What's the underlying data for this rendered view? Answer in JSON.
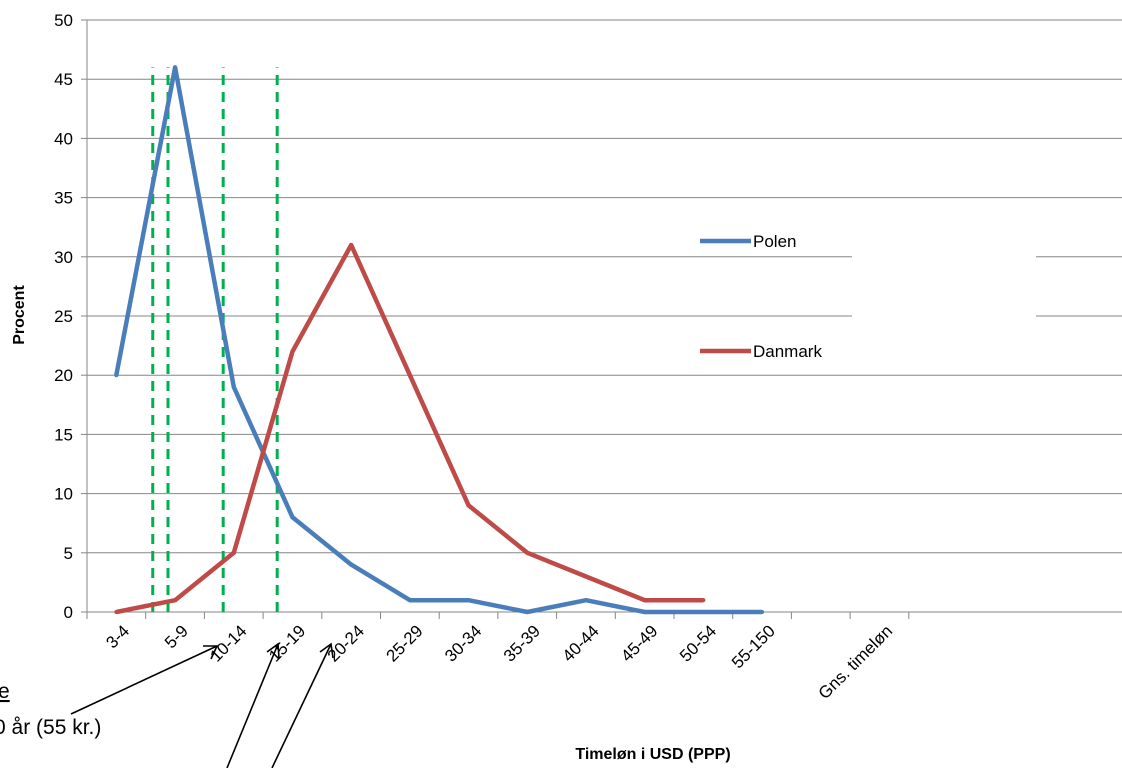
{
  "chart_data": {
    "type": "line",
    "title": "",
    "xlabel": "Timeløn i USD (PPP)",
    "ylabel": "Procent",
    "ylim": [
      0,
      50
    ],
    "yticks": [
      0,
      5,
      10,
      15,
      20,
      25,
      30,
      35,
      40,
      45,
      50
    ],
    "grid": true,
    "legend_position": "right",
    "categories": [
      "3-4",
      "5-9",
      "10-14",
      "15-19",
      "20-24",
      "25-29",
      "30-34",
      "35-39",
      "40-44",
      "45-49",
      "50-54",
      "55-150",
      "",
      "Gns. timeløn"
    ],
    "series": [
      {
        "name": "Polen",
        "color": "#4a7ebb",
        "values": [
          20,
          46,
          19,
          8,
          4,
          1,
          1,
          0,
          1,
          0,
          0,
          0,
          null,
          null
        ]
      },
      {
        "name": "Danmark",
        "color": "#be4b48",
        "values": [
          0,
          1,
          5,
          22,
          31,
          20,
          9,
          5,
          3,
          1,
          1,
          null,
          null,
          null
        ]
      }
    ],
    "reference_lines": {
      "color": "#00b050",
      "style": "dashed",
      "x_positions": [
        5.6,
        6.9,
        11.6,
        16.2
      ]
    },
    "annotations": {
      "partial_label_1": "e",
      "partial_label_2": "0 år (55 kr.)"
    }
  }
}
